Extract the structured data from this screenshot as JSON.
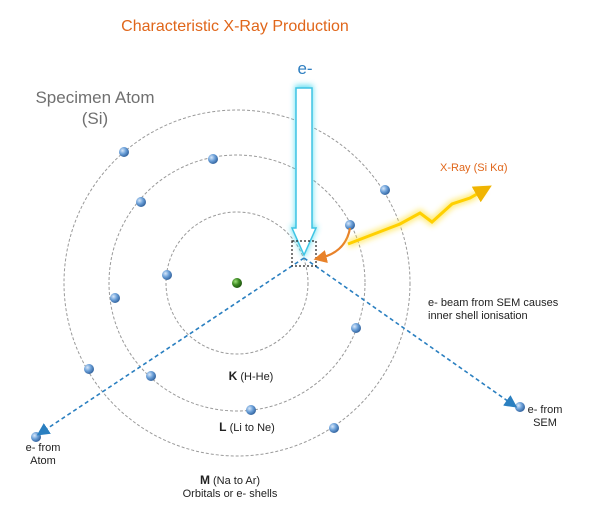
{
  "title": "Characteristic X-Ray Production",
  "specimen": {
    "line1": "Specimen Atom",
    "line2": "(Si)"
  },
  "incident_label": "e-",
  "xray_label": "X-Ray (Si Kα)",
  "note": {
    "line1": "e- beam from SEM causes",
    "line2": "inner shell ionisation"
  },
  "electron_from_sem": {
    "line1": "e- from",
    "line2": "SEM"
  },
  "electron_from_atom": {
    "line1": "e- from",
    "line2": "Atom"
  },
  "shells": {
    "k": {
      "letter": "K",
      "range": " (H-He)"
    },
    "l": {
      "letter": "L",
      "range": " (Li to Ne)"
    },
    "m": {
      "letter": "M",
      "range": " (Na to Ar)",
      "caption": "Orbitals or e- shells"
    }
  },
  "colors": {
    "title": "#e0661a",
    "xray_label": "#e0661a",
    "incident_label": "#2f7fc1",
    "beam": "#2a7fc0",
    "orbit": "#9a9a9a",
    "electron": "#5a8fcc",
    "nucleus": "#3d8a22",
    "xray_ray": "#ffcc00",
    "curved_arrow": "#e8822a",
    "arrow_glow": "#36d6ee"
  }
}
